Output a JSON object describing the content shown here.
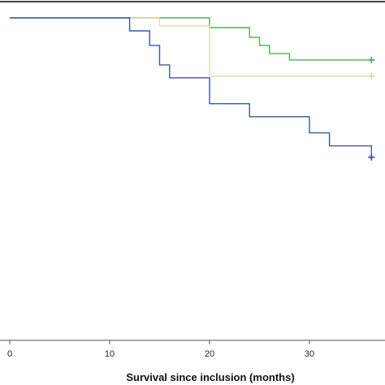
{
  "chart_data": {
    "type": "line",
    "step": true,
    "xlabel": "Survival since inclusion (months)",
    "ylabel": "",
    "xlim": [
      0,
      37
    ],
    "ylim": [
      0,
      1.0
    ],
    "x_ticks": [
      0,
      10,
      20,
      30
    ],
    "grid": false,
    "series": [
      {
        "color": "#4cb050",
        "censor_mark": true,
        "points": [
          [
            0,
            0.995
          ],
          [
            20,
            0.995
          ],
          [
            20,
            0.965
          ],
          [
            24,
            0.965
          ],
          [
            24,
            0.935
          ],
          [
            25,
            0.935
          ],
          [
            25,
            0.91
          ],
          [
            26,
            0.91
          ],
          [
            26,
            0.885
          ],
          [
            28,
            0.885
          ],
          [
            28,
            0.865
          ],
          [
            36.2,
            0.865
          ]
        ]
      },
      {
        "color": "#e6d9a2",
        "censor_mark": true,
        "points": [
          [
            0,
            0.995
          ],
          [
            15,
            0.995
          ],
          [
            15,
            0.97
          ],
          [
            20,
            0.97
          ],
          [
            20,
            0.815
          ],
          [
            36.2,
            0.815
          ]
        ]
      },
      {
        "color": "#3a56a8",
        "censor_mark": true,
        "points": [
          [
            0,
            0.995
          ],
          [
            12,
            0.995
          ],
          [
            12,
            0.955
          ],
          [
            14,
            0.955
          ],
          [
            14,
            0.91
          ],
          [
            15,
            0.91
          ],
          [
            15,
            0.85
          ],
          [
            16,
            0.85
          ],
          [
            16,
            0.81
          ],
          [
            20,
            0.81
          ],
          [
            20,
            0.73
          ],
          [
            24,
            0.73
          ],
          [
            24,
            0.69
          ],
          [
            30,
            0.69
          ],
          [
            30,
            0.64
          ],
          [
            32,
            0.64
          ],
          [
            32,
            0.6
          ],
          [
            36.2,
            0.6
          ],
          [
            36.2,
            0.565
          ]
        ]
      }
    ]
  }
}
